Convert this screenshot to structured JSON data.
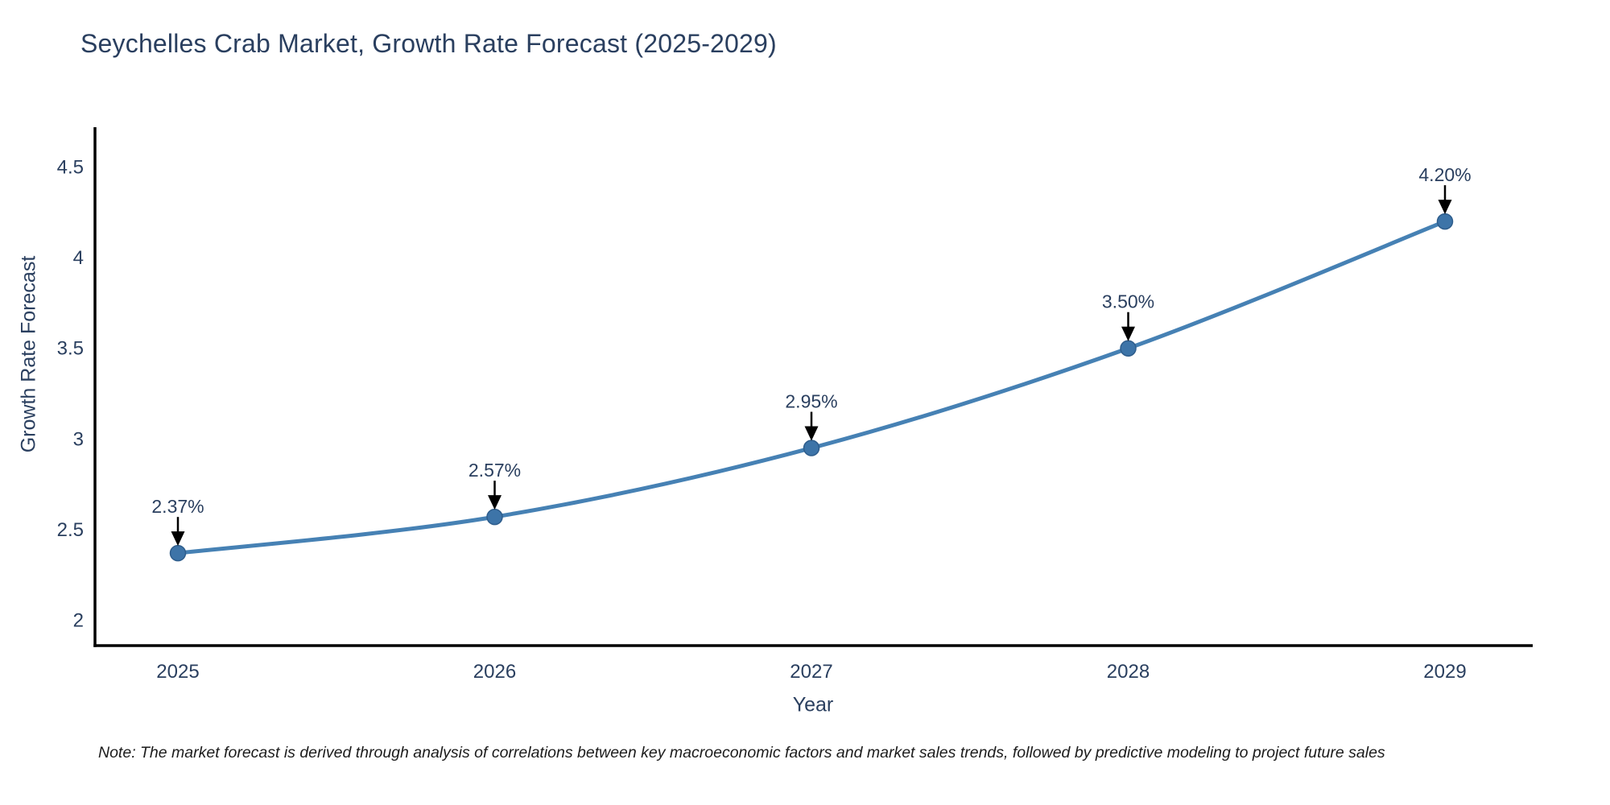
{
  "page": {
    "background": "#ffffff"
  },
  "title": "Seychelles Crab Market, Growth Rate Forecast (2025-2029)",
  "footnote": "Note: The market forecast is derived through analysis of correlations between key macroeconomic factors and market sales trends, followed by predictive modeling to project future sales",
  "chart_data": {
    "type": "line",
    "title": "Seychelles Crab Market, Growth Rate Forecast (2025-2029)",
    "xlabel": "Year",
    "ylabel": "Growth Rate Forecast",
    "x": [
      2025,
      2026,
      2027,
      2028,
      2029
    ],
    "series": [
      {
        "name": "Growth Rate Forecast",
        "values": [
          2.37,
          2.57,
          2.95,
          3.5,
          4.2
        ]
      }
    ],
    "point_labels": [
      "2.37%",
      "2.57%",
      "2.95%",
      "3.50%",
      "4.20%"
    ],
    "yticks": [
      2,
      2.5,
      3,
      3.5,
      4,
      4.5
    ],
    "ylim": [
      1.86,
      4.72
    ],
    "grid": false,
    "legend_position": "none",
    "line_shape": "spline",
    "colors": {
      "line": "#4681b4",
      "marker": "#3d74a8",
      "marker_edge": "#2e5d8c",
      "axis": "#000000",
      "text": "#2a3f5f",
      "annotation_arrow": "#000000",
      "note_text": "#1c1c1c"
    }
  }
}
